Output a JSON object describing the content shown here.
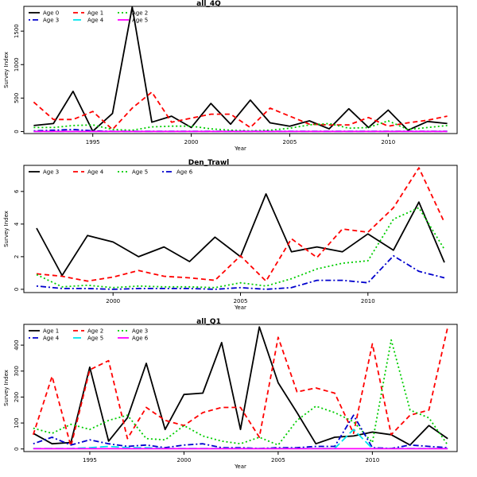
{
  "chart_data": [
    {
      "type": "line",
      "title": "all_4Q",
      "xlabel": "Year",
      "ylabel": "Survey Index",
      "xlim": [
        1991.5,
        2013.5
      ],
      "ylim": [
        -30,
        1870
      ],
      "xticks": [
        1995,
        2000,
        2005,
        2010
      ],
      "yticks": [
        0,
        500,
        1000,
        1500
      ],
      "x": [
        1992,
        1993,
        1994,
        1995,
        1996,
        1997,
        1998,
        1999,
        2000,
        2001,
        2002,
        2003,
        2004,
        2005,
        2006,
        2007,
        2008,
        2009,
        2010,
        2011,
        2012,
        2013
      ],
      "legend": {
        "position": "top-left",
        "ncol": 3
      },
      "series": [
        {
          "name": "Age 0",
          "color": "#000000",
          "dash": "solid",
          "values": [
            90,
            120,
            600,
            5,
            270,
            1860,
            140,
            230,
            60,
            420,
            110,
            470,
            130,
            80,
            160,
            40,
            340,
            60,
            320,
            20,
            150,
            120
          ]
        },
        {
          "name": "Age 1",
          "color": "#ff0000",
          "dash": "dashed",
          "values": [
            440,
            180,
            180,
            300,
            30,
            350,
            590,
            140,
            200,
            260,
            260,
            60,
            350,
            230,
            110,
            100,
            100,
            210,
            80,
            130,
            170,
            230
          ]
        },
        {
          "name": "Age 2",
          "color": "#00cd00",
          "dash": "dotted",
          "values": [
            60,
            60,
            90,
            100,
            30,
            20,
            70,
            80,
            80,
            40,
            20,
            10,
            20,
            50,
            100,
            120,
            50,
            60,
            160,
            30,
            60,
            90
          ]
        },
        {
          "name": "Age 3",
          "color": "#0000cd",
          "dash": "dotdash",
          "values": [
            10,
            20,
            30,
            10,
            5,
            5,
            5,
            5,
            5,
            5,
            5,
            5,
            5,
            5,
            5,
            5,
            5,
            5,
            5,
            5,
            5,
            5
          ]
        },
        {
          "name": "Age 4",
          "color": "#00e5ee",
          "dash": "longdash",
          "values": [
            2,
            2,
            2,
            2,
            2,
            2,
            2,
            2,
            2,
            2,
            2,
            2,
            2,
            2,
            2,
            2,
            2,
            2,
            2,
            2,
            2,
            2
          ]
        },
        {
          "name": "Age 5",
          "color": "#ff00ff",
          "dash": "solid",
          "values": [
            1,
            1,
            1,
            1,
            1,
            1,
            1,
            1,
            1,
            1,
            1,
            1,
            1,
            1,
            1,
            1,
            1,
            1,
            1,
            1,
            1,
            1
          ]
        }
      ]
    },
    {
      "type": "line",
      "title": "Den_Trawl",
      "xlabel": "Year",
      "ylabel": "Survey Index",
      "xlim": [
        1996.5,
        2013.5
      ],
      "ylim": [
        -0.2,
        7.6
      ],
      "xticks": [
        2000,
        2005,
        2010
      ],
      "yticks": [
        0,
        2,
        4,
        6
      ],
      "x": [
        1997,
        1998,
        1999,
        2000,
        2001,
        2002,
        2003,
        2004,
        2005,
        2006,
        2007,
        2008,
        2009,
        2010,
        2011,
        2012,
        2013
      ],
      "legend": {
        "position": "top-left",
        "ncol": 4
      },
      "series": [
        {
          "name": "Age 3",
          "color": "#000000",
          "dash": "solid",
          "values": [
            3.75,
            0.85,
            3.3,
            2.9,
            2.0,
            2.6,
            1.7,
            3.2,
            2.0,
            5.85,
            2.3,
            2.6,
            2.3,
            3.4,
            2.4,
            5.35,
            1.65
          ]
        },
        {
          "name": "Age 4",
          "color": "#ff0000",
          "dash": "dashed",
          "values": [
            0.95,
            0.8,
            0.5,
            0.75,
            1.15,
            0.8,
            0.7,
            0.55,
            2.05,
            0.5,
            3.1,
            1.95,
            3.7,
            3.5,
            5.0,
            7.45,
            4.1
          ]
        },
        {
          "name": "Age 5",
          "color": "#00cd00",
          "dash": "dotted",
          "values": [
            0.9,
            0.15,
            0.25,
            0.1,
            0.2,
            0.15,
            0.15,
            0.1,
            0.4,
            0.2,
            0.65,
            1.25,
            1.6,
            1.75,
            4.3,
            5.0,
            2.45
          ]
        },
        {
          "name": "Age 6",
          "color": "#0000cd",
          "dash": "dotdash",
          "values": [
            0.2,
            0.05,
            0.05,
            0.0,
            0.05,
            0.05,
            0.05,
            0.0,
            0.1,
            0.0,
            0.1,
            0.55,
            0.55,
            0.4,
            2.05,
            1.1,
            0.7
          ]
        }
      ]
    },
    {
      "type": "line",
      "title": "all_Q1",
      "xlabel": "Year",
      "ylabel": "Survey Index",
      "xlim": [
        1991.5,
        2014.5
      ],
      "ylim": [
        -10,
        480
      ],
      "xticks": [
        1995,
        2000,
        2005,
        2010
      ],
      "yticks": [
        0,
        100,
        200,
        300,
        400
      ],
      "x": [
        1992,
        1993,
        1994,
        1995,
        1996,
        1997,
        1998,
        1999,
        2000,
        2001,
        2002,
        2003,
        2004,
        2005,
        2006,
        2007,
        2008,
        2009,
        2010,
        2011,
        2012,
        2013,
        2014
      ],
      "legend": {
        "position": "top-left",
        "ncol": 3
      },
      "series": [
        {
          "name": "Age 1",
          "color": "#000000",
          "dash": "solid",
          "values": [
            60,
            20,
            25,
            315,
            30,
            120,
            330,
            75,
            210,
            215,
            410,
            75,
            470,
            255,
            140,
            20,
            45,
            50,
            65,
            55,
            15,
            90,
            40
          ]
        },
        {
          "name": "Age 2",
          "color": "#ff0000",
          "dash": "dashed",
          "values": [
            55,
            280,
            10,
            305,
            340,
            40,
            160,
            110,
            90,
            140,
            160,
            160,
            45,
            430,
            220,
            235,
            215,
            60,
            405,
            55,
            130,
            150,
            470
          ]
        },
        {
          "name": "Age 3",
          "color": "#00cd00",
          "dash": "dotted",
          "values": [
            80,
            60,
            95,
            75,
            110,
            130,
            40,
            35,
            90,
            50,
            30,
            20,
            45,
            15,
            110,
            165,
            140,
            105,
            25,
            420,
            150,
            120,
            15
          ]
        },
        {
          "name": "Age 4",
          "color": "#0000cd",
          "dash": "dotdash",
          "values": [
            20,
            45,
            15,
            35,
            20,
            10,
            15,
            5,
            15,
            20,
            5,
            5,
            2,
            5,
            5,
            10,
            10,
            130,
            5,
            2,
            15,
            10,
            5
          ]
        },
        {
          "name": "Age 5",
          "color": "#00e5ee",
          "dash": "longdash",
          "values": [
            2,
            2,
            2,
            5,
            10,
            5,
            5,
            2,
            2,
            2,
            2,
            2,
            2,
            2,
            2,
            2,
            2,
            75,
            2,
            2,
            2,
            2,
            2
          ]
        },
        {
          "name": "Age 6",
          "color": "#ff00ff",
          "dash": "solid",
          "values": [
            1,
            1,
            1,
            1,
            1,
            1,
            1,
            1,
            1,
            1,
            1,
            1,
            1,
            1,
            1,
            1,
            1,
            1,
            1,
            1,
            1,
            1,
            1
          ]
        }
      ]
    }
  ]
}
